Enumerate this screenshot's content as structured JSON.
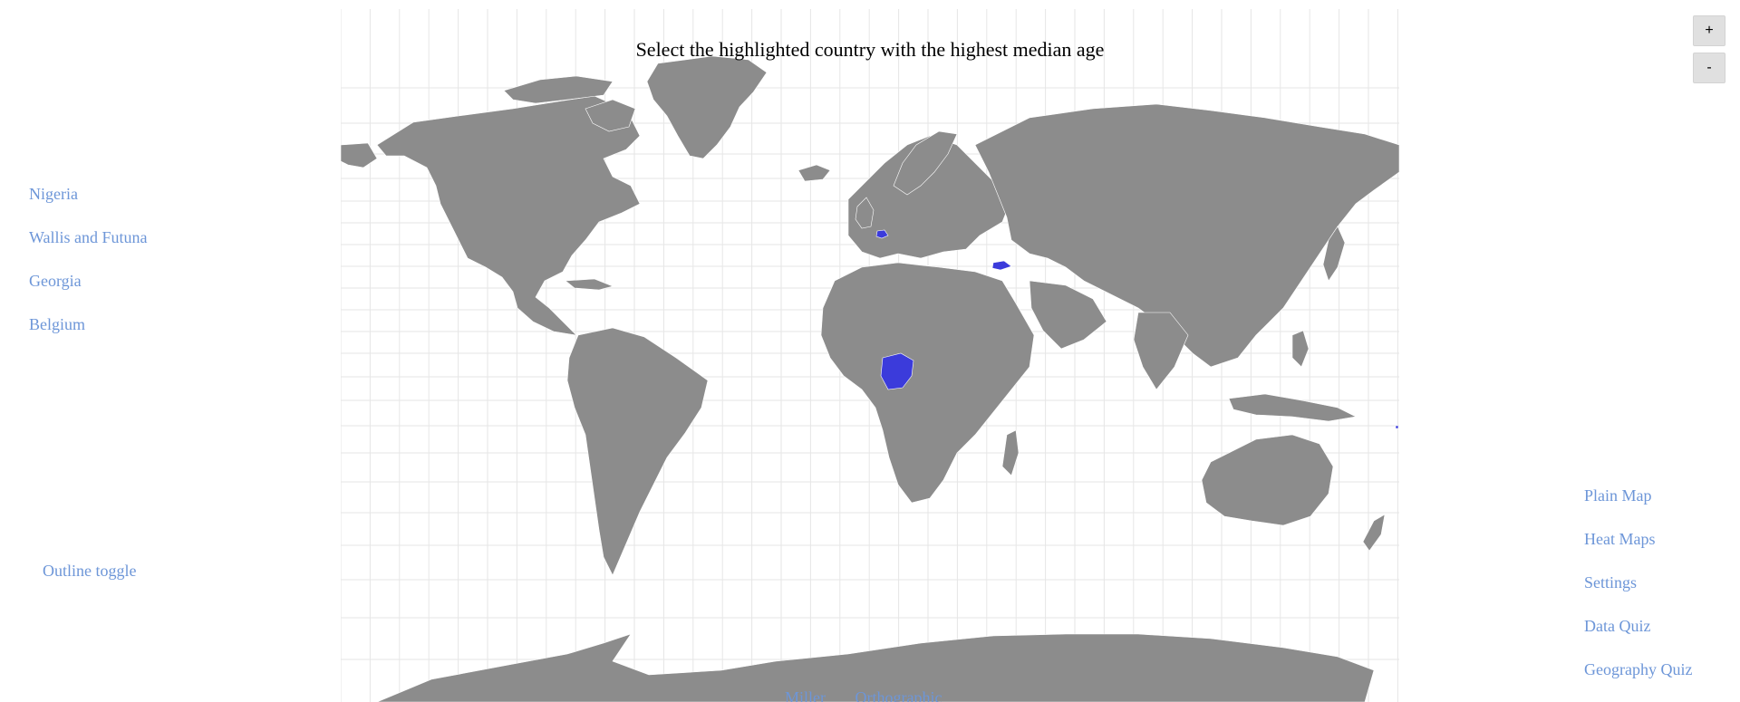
{
  "prompt": "Select the highlighted country with the highest median age",
  "options": [
    {
      "label": "Nigeria"
    },
    {
      "label": "Wallis and Futuna"
    },
    {
      "label": "Georgia"
    },
    {
      "label": "Belgium"
    }
  ],
  "outline_toggle_label": "Outline toggle",
  "nav": [
    {
      "label": "Plain Map"
    },
    {
      "label": "Heat Maps"
    },
    {
      "label": "Settings"
    },
    {
      "label": "Data Quiz"
    },
    {
      "label": "Geography Quiz"
    }
  ],
  "zoom": {
    "in_label": "+",
    "out_label": "-"
  },
  "projections": [
    {
      "label": "Miller"
    },
    {
      "label": "Orthographic"
    }
  ],
  "colors": {
    "land": "#8c8c8c",
    "highlight": "#3b3bdb",
    "border": "#ffffff",
    "grid": "#e6e6e6",
    "link": "#6d96d8"
  },
  "highlighted_countries": [
    "Nigeria",
    "Georgia",
    "Belgium",
    "Wallis and Futuna"
  ]
}
